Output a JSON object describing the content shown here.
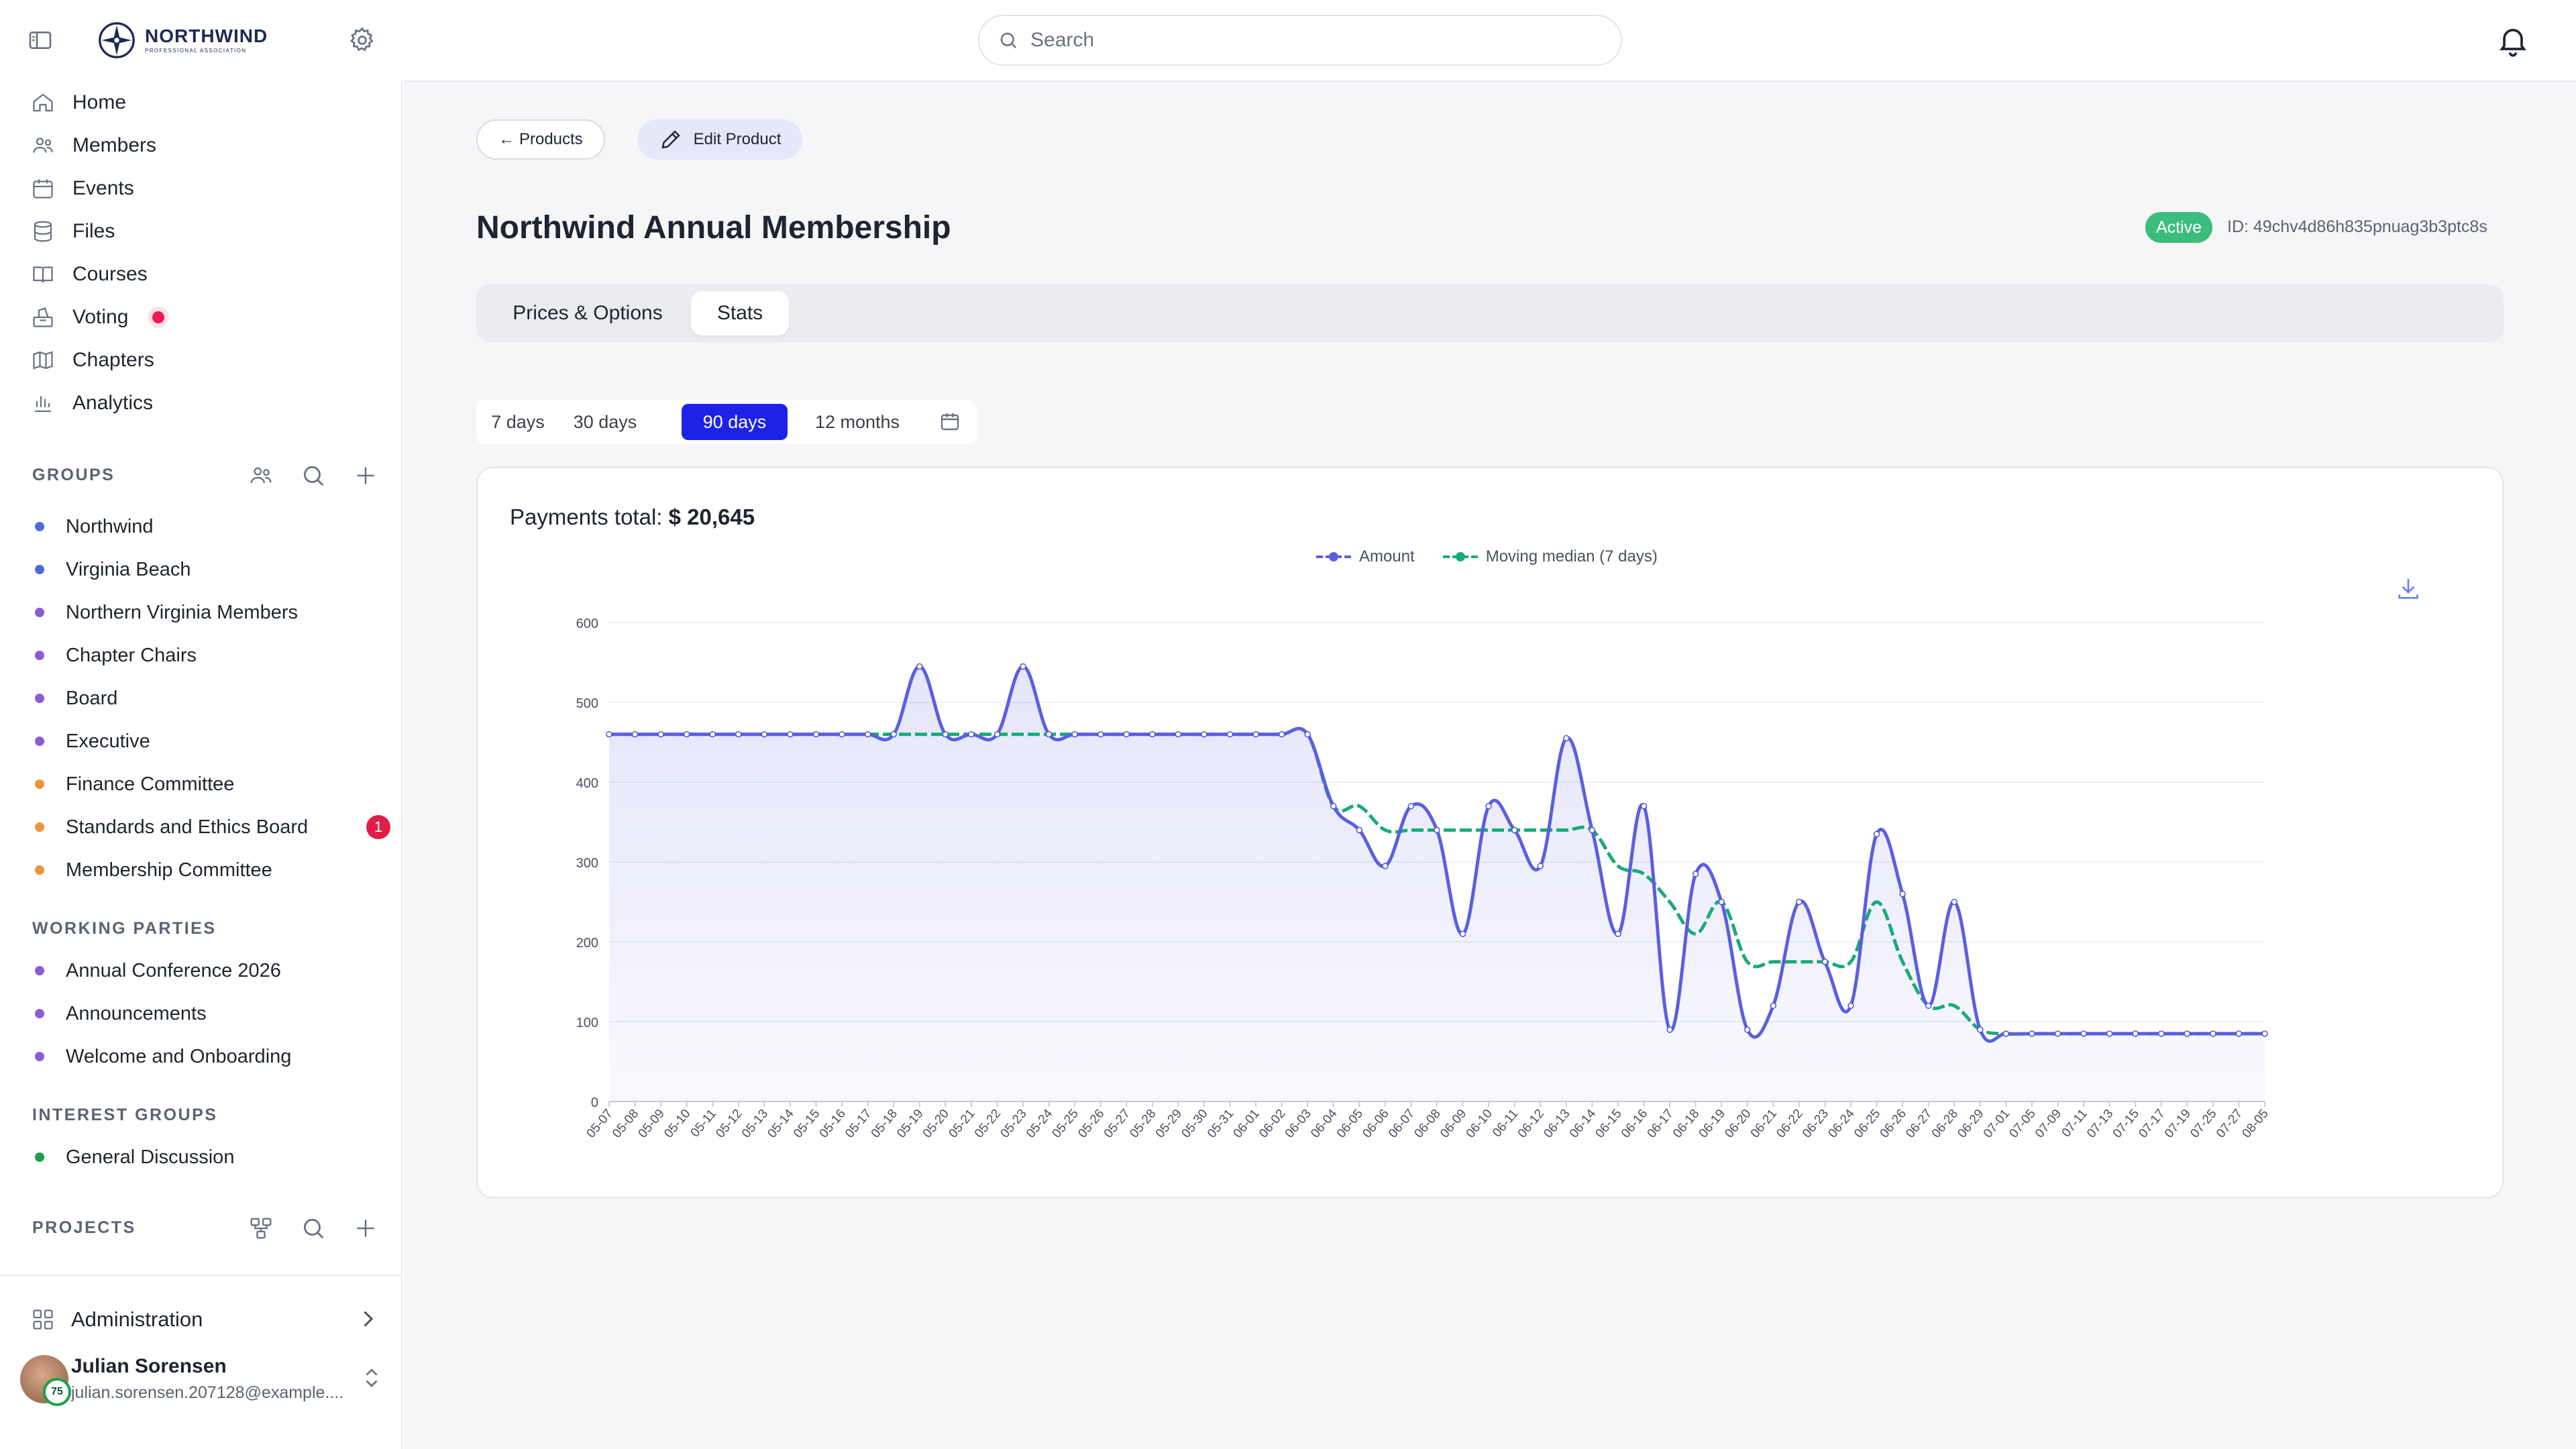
{
  "topbar": {
    "logo_name": "NORTHWIND",
    "logo_sub": "PROFESSIONAL ASSOCIATION",
    "search_placeholder": "Search"
  },
  "sidebar": {
    "nav": [
      {
        "label": "Home",
        "icon": "home-icon"
      },
      {
        "label": "Members",
        "icon": "users-icon"
      },
      {
        "label": "Events",
        "icon": "calendar-icon"
      },
      {
        "label": "Files",
        "icon": "database-icon"
      },
      {
        "label": "Courses",
        "icon": "book-icon"
      },
      {
        "label": "Voting",
        "icon": "ballot-icon"
      },
      {
        "label": "Chapters",
        "icon": "map-icon"
      },
      {
        "label": "Analytics",
        "icon": "bar-chart-icon"
      }
    ],
    "groups_heading": "GROUPS",
    "groups": [
      {
        "label": "Northwind",
        "color": "#4f6bd8"
      },
      {
        "label": "Virginia Beach",
        "color": "#4f6bd8"
      },
      {
        "label": "Northern Virginia Members",
        "color": "#8b5cd6"
      },
      {
        "label": "Chapter Chairs",
        "color": "#8b5cd6"
      },
      {
        "label": "Board",
        "color": "#8b5cd6"
      },
      {
        "label": "Executive",
        "color": "#8b5cd6"
      },
      {
        "label": "Finance Committee",
        "color": "#e9973a"
      },
      {
        "label": "Standards and Ethics Board",
        "color": "#e9973a",
        "badge": "1"
      },
      {
        "label": "Membership Committee",
        "color": "#e9973a"
      }
    ],
    "working_heading": "WORKING PARTIES",
    "working": [
      {
        "label": "Annual Conference 2026",
        "color": "#8b5cd6"
      },
      {
        "label": "Announcements",
        "color": "#8b5cd6"
      },
      {
        "label": "Welcome and Onboarding",
        "color": "#8b5cd6"
      }
    ],
    "interest_heading": "INTEREST GROUPS",
    "interest": [
      {
        "label": "General Discussion",
        "color": "#16a34a"
      }
    ],
    "projects_heading": "PROJECTS",
    "administration": "Administration",
    "user": {
      "name": "Julian Sorensen",
      "email": "julian.sorensen.207128@example....",
      "badge": "75"
    }
  },
  "main": {
    "back_label": "← Products",
    "edit_label": "Edit Product",
    "title": "Northwind Annual Membership",
    "status": "Active",
    "product_id": "ID: 49chv4d86h835pnuag3b3ptc8s",
    "tabs": [
      "Prices & Options",
      "Stats"
    ],
    "active_tab": "Stats",
    "ranges": [
      "7 days",
      "30 days",
      "90 days",
      "12 months"
    ],
    "active_range": "90 days",
    "payments_label": "Payments total:",
    "payments_total": "$ 20,645"
  },
  "chart_data": {
    "type": "line",
    "title": "",
    "xlabel": "",
    "ylabel": "",
    "ylim": [
      0,
      600
    ],
    "yticks": [
      0,
      100,
      200,
      300,
      400,
      500,
      600
    ],
    "legend_position": "top-center",
    "grid": true,
    "x": [
      "05-07",
      "05-08",
      "05-09",
      "05-10",
      "05-11",
      "05-12",
      "05-13",
      "05-14",
      "05-15",
      "05-16",
      "05-17",
      "05-18",
      "05-19",
      "05-20",
      "05-21",
      "05-22",
      "05-23",
      "05-24",
      "05-25",
      "05-26",
      "05-27",
      "05-28",
      "05-29",
      "05-30",
      "05-31",
      "06-01",
      "06-02",
      "06-03",
      "06-04",
      "06-05",
      "06-06",
      "06-07",
      "06-08",
      "06-09",
      "06-10",
      "06-11",
      "06-12",
      "06-13",
      "06-14",
      "06-15",
      "06-16",
      "06-17",
      "06-18",
      "06-19",
      "06-20",
      "06-21",
      "06-22",
      "06-23",
      "06-24",
      "06-25",
      "06-26",
      "06-27",
      "06-28",
      "06-29",
      "07-01",
      "07-05",
      "07-09",
      "07-11",
      "07-13",
      "07-15",
      "07-17",
      "07-19",
      "07-25",
      "07-27",
      "08-05"
    ],
    "series": [
      {
        "name": "Amount",
        "color": "#5b5fe0",
        "values": [
          460,
          460,
          460,
          460,
          460,
          460,
          460,
          460,
          460,
          460,
          460,
          460,
          545,
          460,
          460,
          460,
          545,
          460,
          460,
          460,
          460,
          460,
          460,
          460,
          460,
          460,
          460,
          460,
          370,
          340,
          295,
          370,
          340,
          210,
          370,
          340,
          295,
          455,
          340,
          210,
          370,
          90,
          285,
          250,
          90,
          120,
          250,
          175,
          120,
          335,
          260,
          120,
          250,
          90,
          85,
          85,
          85,
          85,
          85,
          85,
          85,
          85,
          85,
          85,
          85
        ]
      },
      {
        "name": "Moving median (7 days)",
        "color": "#1aaa78",
        "values": [
          460,
          460,
          460,
          460,
          460,
          460,
          460,
          460,
          460,
          460,
          460,
          460,
          460,
          460,
          460,
          460,
          460,
          460,
          460,
          460,
          460,
          460,
          460,
          460,
          460,
          460,
          460,
          460,
          370,
          370,
          340,
          340,
          340,
          340,
          340,
          340,
          340,
          340,
          340,
          295,
          285,
          250,
          210,
          250,
          175,
          175,
          175,
          175,
          175,
          250,
          175,
          120,
          120,
          90,
          85,
          85,
          85,
          85,
          85,
          85,
          85,
          85,
          85,
          85,
          85
        ]
      }
    ]
  }
}
